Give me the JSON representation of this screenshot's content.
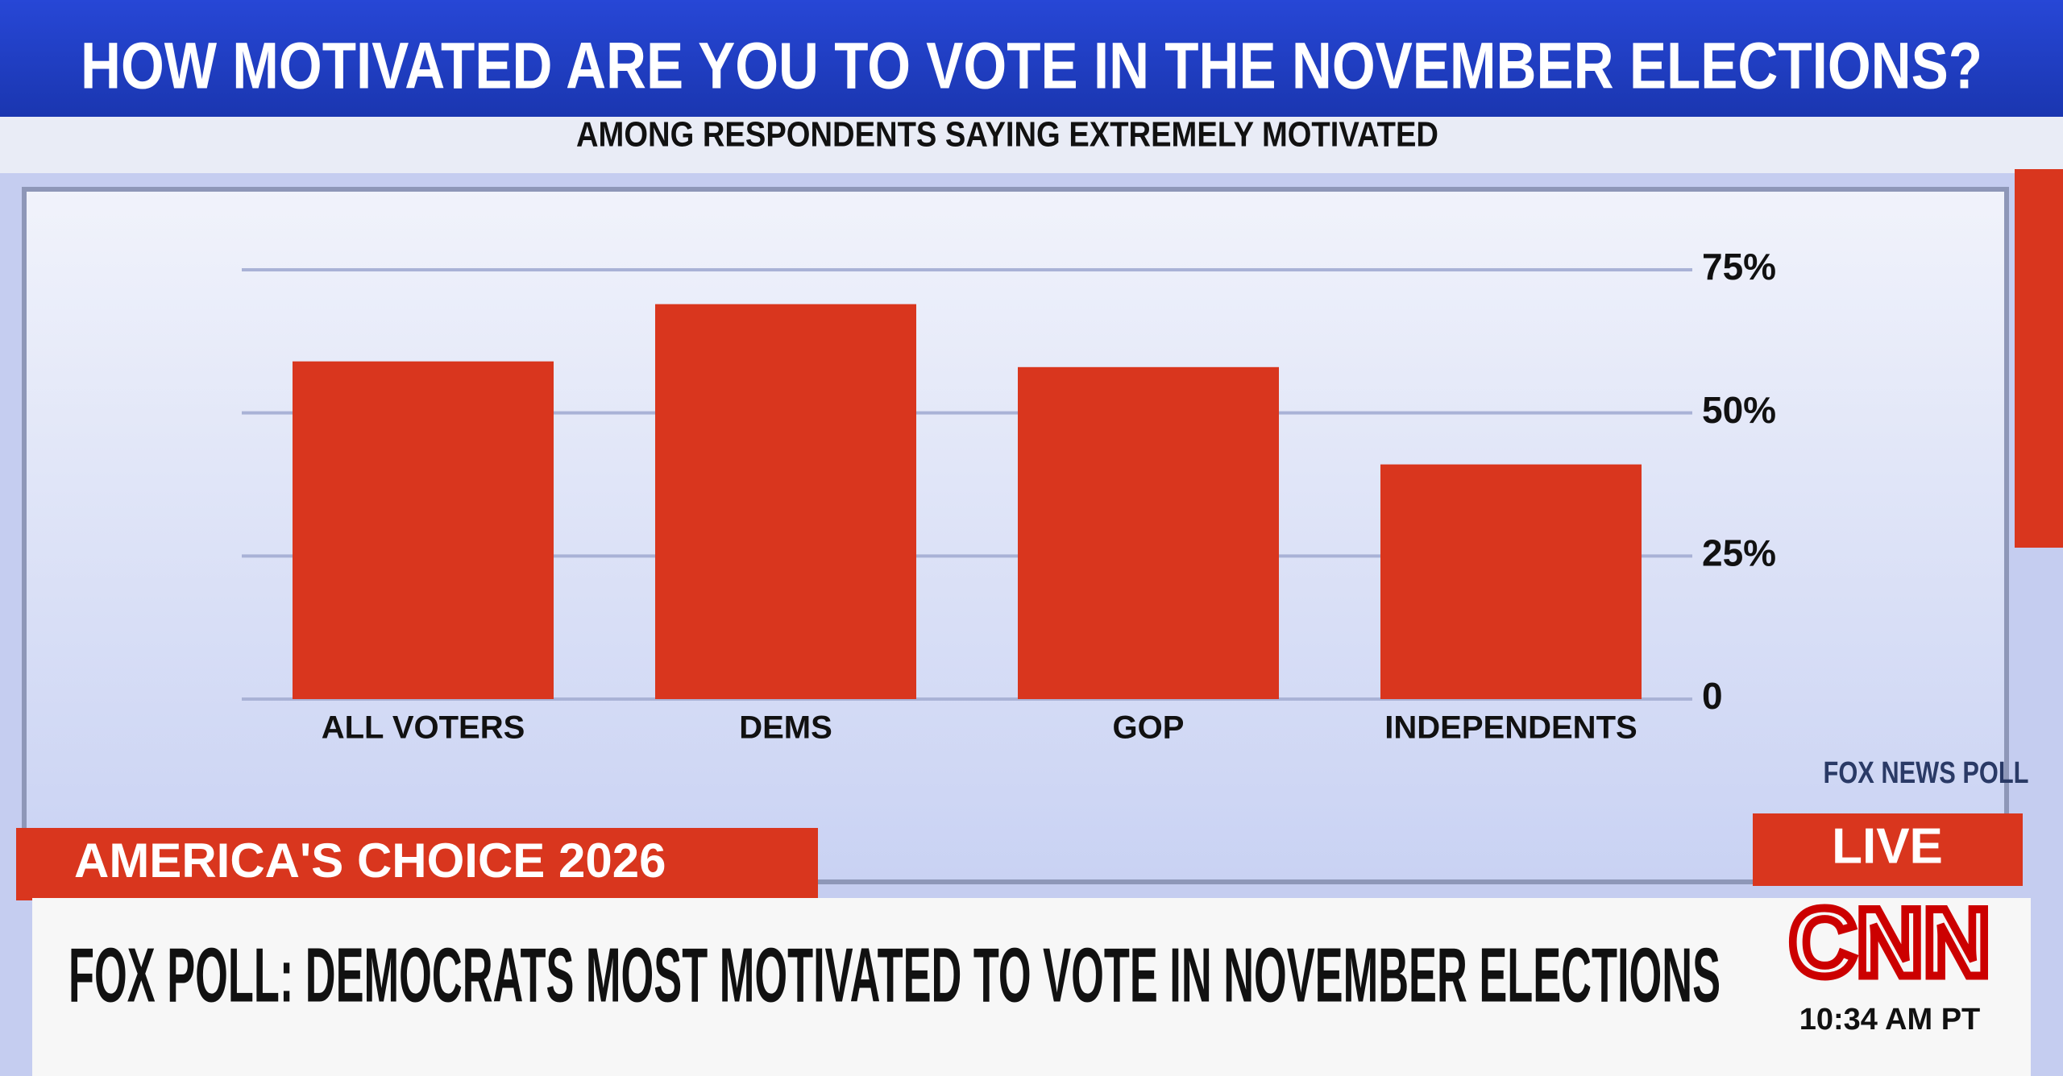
{
  "chart_data": {
    "type": "bar",
    "title": "HOW MOTIVATED ARE YOU TO VOTE IN THE NOVEMBER ELECTIONS?",
    "subtitle": "AMONG RESPONDENTS SAYING EXTREMELY MOTIVATED",
    "categories": [
      "ALL VOTERS",
      "DEMS",
      "GOP",
      "INDEPENDENTS"
    ],
    "values": [
      59,
      69,
      58,
      41
    ],
    "color": "#d9361e",
    "ylim": [
      0,
      75
    ],
    "yticks": [
      0,
      {
        "value": 25,
        "label": "25%"
      },
      {
        "value": 50,
        "label": "50%"
      },
      {
        "value": 75,
        "label": "75%"
      }
    ],
    "grid": true,
    "source": "FOX NEWS POLL"
  },
  "banner": {
    "program": "AMERICA'S CHOICE 2026",
    "live": "LIVE",
    "headline": "FOX POLL: DEMOCRATS MOST MOTIVATED TO VOTE IN NOVEMBER ELECTIONS",
    "network": "CNN",
    "time": "10:34 AM PT"
  }
}
